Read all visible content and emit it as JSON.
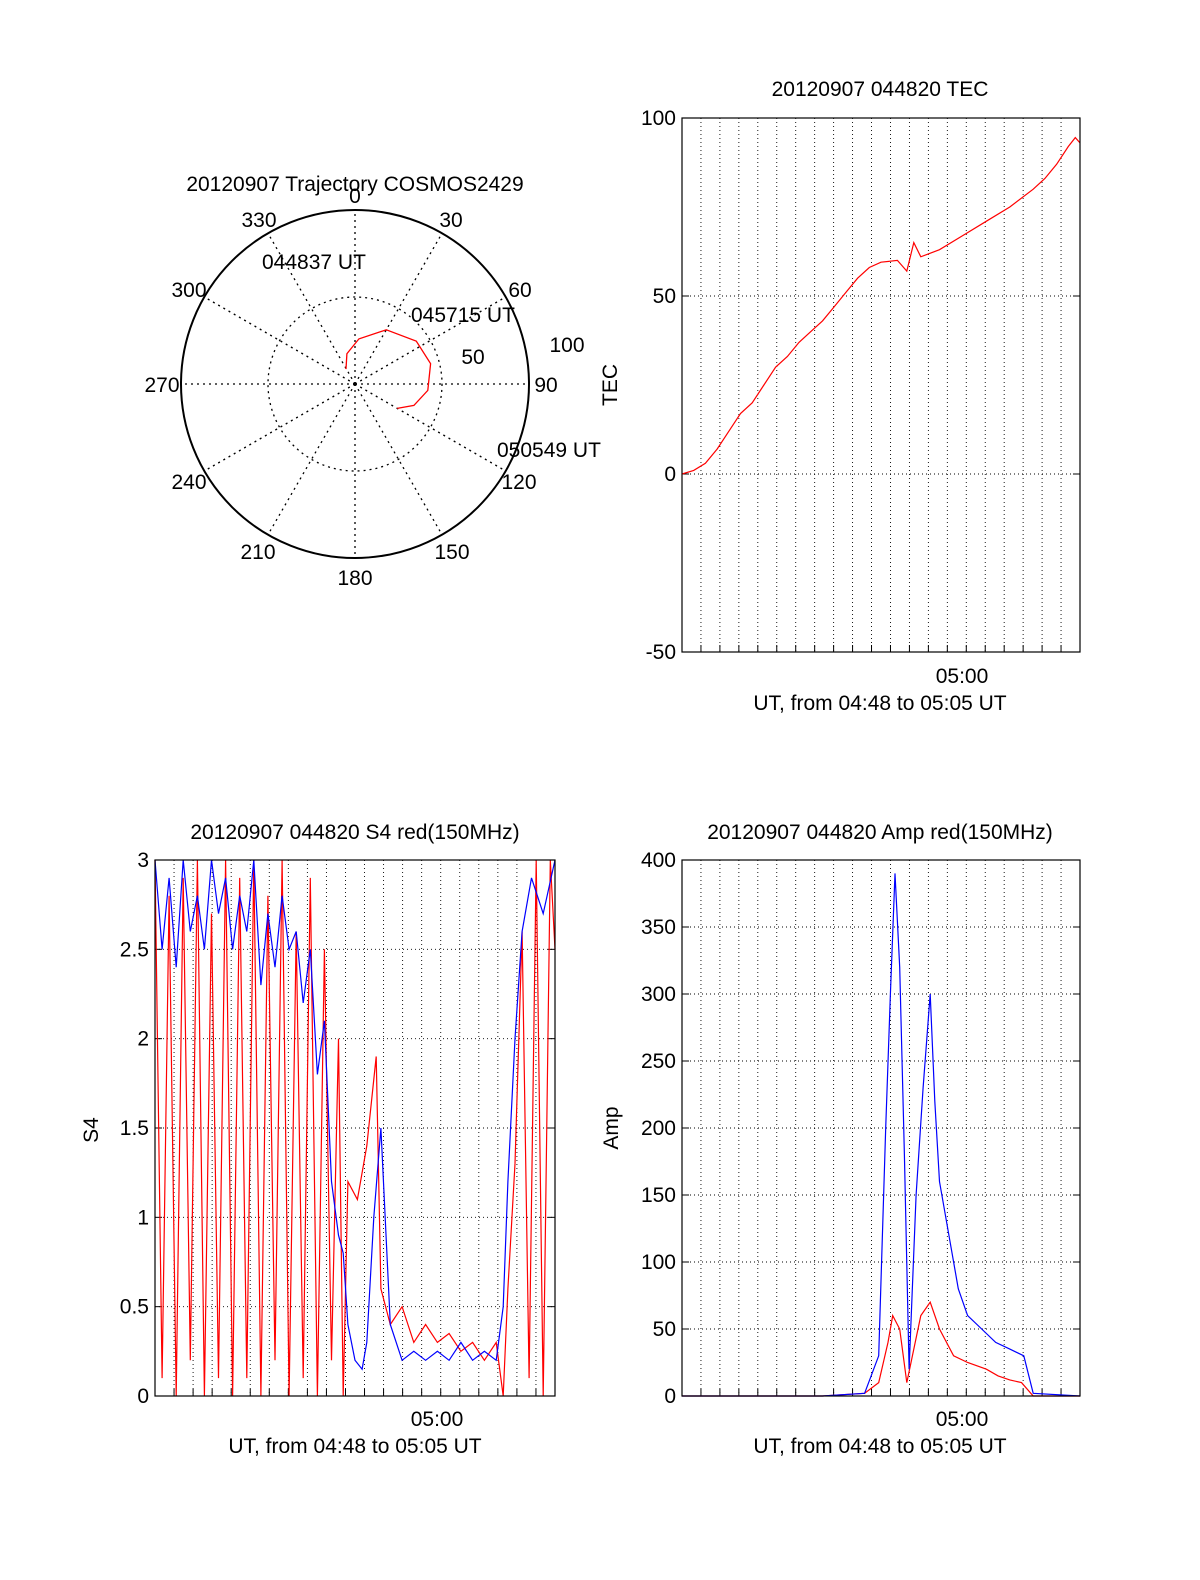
{
  "chart_data": [
    {
      "type": "polar",
      "title": "20120907 Trajectory COSMOS2429",
      "angle_labels": [
        "0",
        "30",
        "60",
        "90",
        "120",
        "150",
        "180",
        "210",
        "240",
        "270",
        "300",
        "330"
      ],
      "radius_labels": [
        "50",
        "100"
      ],
      "trajectory": {
        "color": "#ff0000",
        "points": [
          [
            329,
            90
          ],
          [
            345,
            82
          ],
          [
            5,
            74
          ],
          [
            30,
            64
          ],
          [
            55,
            57
          ],
          [
            75,
            55
          ],
          [
            95,
            58
          ],
          [
            110,
            64
          ],
          [
            120,
            72
          ]
        ]
      },
      "annotations": [
        "044837 UT",
        "045715 UT",
        "050549 UT"
      ]
    },
    {
      "type": "line",
      "title": "20120907 044820 TEC",
      "xlabel": "UT, from 04:48 to 05:05 UT",
      "ylabel": "TEC",
      "xlim": [
        0,
        17
      ],
      "ylim": [
        -50,
        100
      ],
      "yticks": [
        "100",
        "50",
        "0",
        "-50"
      ],
      "xtick_label": "05:00",
      "grid": true,
      "series": [
        {
          "color": "#ff0000",
          "x": [
            0,
            0.5,
            1.0,
            1.5,
            2.0,
            2.5,
            3.0,
            3.5,
            4.0,
            4.5,
            5.0,
            5.5,
            6.0,
            6.5,
            7.0,
            7.5,
            8.0,
            8.5,
            9.2,
            9.6,
            9.9,
            10.2,
            11.0,
            12.0,
            13.0,
            14.0,
            15.0,
            15.5,
            16.0,
            16.5,
            16.8,
            17.0
          ],
          "y": [
            0,
            1,
            3,
            7,
            12,
            17,
            20,
            25,
            30,
            33,
            37,
            40,
            43,
            47,
            51,
            55,
            58,
            59.5,
            60,
            57,
            65,
            61,
            63,
            67,
            71,
            75,
            80,
            83,
            87,
            92,
            94.5,
            93
          ]
        }
      ]
    },
    {
      "type": "line",
      "title": "20120907 044820 S4 red(150MHz)",
      "xlabel": "UT, from 04:48 to 05:05 UT",
      "ylabel": "S4",
      "xlim": [
        0,
        17
      ],
      "ylim": [
        0,
        3
      ],
      "yticks": [
        "3",
        "2.5",
        "2",
        "1.5",
        "1",
        "0.5",
        "0"
      ],
      "xtick_label": "05:00",
      "grid": true,
      "series": [
        {
          "color": "#ff0000",
          "x": [
            0,
            0.3,
            0.6,
            0.9,
            1.2,
            1.5,
            1.8,
            2.1,
            2.4,
            2.7,
            3.0,
            3.3,
            3.6,
            3.9,
            4.2,
            4.5,
            4.8,
            5.1,
            5.4,
            5.7,
            6.0,
            6.3,
            6.6,
            6.9,
            7.2,
            7.5,
            7.8,
            8.0,
            8.2,
            8.6,
            9.0,
            9.4,
            9.6,
            10.0,
            10.5,
            11.0,
            11.5,
            12.0,
            12.5,
            13.0,
            13.5,
            14.0,
            14.5,
            14.8,
            15.0,
            15.3,
            15.6,
            15.9,
            16.2,
            16.5,
            16.8,
            17.0
          ],
          "y": [
            3,
            0.1,
            2.8,
            0,
            2.9,
            0.2,
            3,
            0,
            2.7,
            0.1,
            3,
            0,
            2.9,
            0.1,
            3,
            0,
            2.8,
            0.2,
            3,
            0,
            2.6,
            0.1,
            2.9,
            0,
            2.5,
            0.2,
            2.0,
            0,
            1.2,
            1.1,
            1.4,
            1.9,
            0.6,
            0.4,
            0.5,
            0.3,
            0.4,
            0.3,
            0.35,
            0.25,
            0.3,
            0.2,
            0.3,
            0,
            0.6,
            1.3,
            2.6,
            0.1,
            3,
            0,
            3,
            2.5
          ]
        },
        {
          "color": "#0000ff",
          "x": [
            0,
            0.3,
            0.6,
            0.9,
            1.2,
            1.5,
            1.8,
            2.1,
            2.4,
            2.7,
            3.0,
            3.3,
            3.6,
            3.9,
            4.2,
            4.5,
            4.8,
            5.1,
            5.4,
            5.7,
            6.0,
            6.3,
            6.6,
            6.9,
            7.2,
            7.5,
            7.8,
            8.0,
            8.2,
            8.5,
            8.8,
            9.0,
            9.3,
            9.6,
            10.0,
            10.5,
            11.0,
            11.5,
            12.0,
            12.5,
            13.0,
            13.5,
            14.0,
            14.5,
            14.8,
            15.0,
            15.3,
            15.6,
            16.0,
            16.5,
            17.0
          ],
          "y": [
            3,
            2.5,
            2.9,
            2.4,
            3,
            2.6,
            2.8,
            2.5,
            3,
            2.7,
            2.9,
            2.5,
            2.8,
            2.6,
            3,
            2.3,
            2.7,
            2.4,
            2.8,
            2.5,
            2.6,
            2.2,
            2.5,
            1.8,
            2.1,
            1.2,
            0.9,
            0.8,
            0.4,
            0.2,
            0.15,
            0.3,
            1.0,
            1.5,
            0.4,
            0.2,
            0.25,
            0.2,
            0.25,
            0.2,
            0.3,
            0.2,
            0.25,
            0.2,
            0.5,
            1.2,
            2.0,
            2.6,
            2.9,
            2.7,
            3
          ]
        }
      ]
    },
    {
      "type": "line",
      "title": "20120907 044820 Amp red(150MHz)",
      "xlabel": "UT, from 04:48 to 05:05 UT",
      "ylabel": "Amp",
      "xlim": [
        0,
        17
      ],
      "ylim": [
        0,
        400
      ],
      "yticks": [
        "400",
        "350",
        "300",
        "250",
        "200",
        "150",
        "100",
        "50",
        "0"
      ],
      "xtick_label": "05:00",
      "grid": true,
      "series": [
        {
          "color": "#ff0000",
          "x": [
            0,
            2,
            4,
            6,
            7.8,
            8.4,
            8.8,
            9.0,
            9.3,
            9.6,
            9.9,
            10.2,
            10.6,
            11.0,
            11.6,
            12.2,
            13.0,
            13.5,
            14.0,
            14.5,
            15.0,
            17.0
          ],
          "y": [
            0,
            0,
            0,
            0,
            2,
            10,
            40,
            60,
            50,
            10,
            35,
            60,
            70,
            50,
            30,
            25,
            20,
            15,
            12,
            10,
            0,
            0
          ]
        },
        {
          "color": "#0000ff",
          "x": [
            0,
            2,
            4,
            6,
            7.8,
            8.4,
            8.7,
            8.9,
            9.1,
            9.3,
            9.5,
            9.7,
            10.0,
            10.3,
            10.6,
            10.8,
            11.0,
            11.4,
            11.8,
            12.2,
            12.8,
            13.4,
            14.0,
            14.6,
            15.0,
            17.0
          ],
          "y": [
            0,
            0,
            0,
            0,
            2,
            30,
            200,
            300,
            390,
            320,
            180,
            20,
            150,
            230,
            300,
            220,
            160,
            120,
            80,
            60,
            50,
            40,
            35,
            30,
            2,
            0
          ]
        }
      ]
    }
  ]
}
